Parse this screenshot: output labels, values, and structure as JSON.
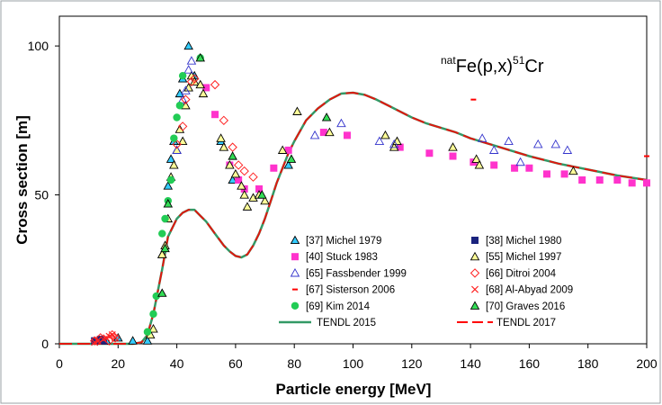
{
  "chart_data": {
    "type": "scatter",
    "title": "natFe(p,x)51Cr",
    "title_parts": {
      "pre_sup": "nat",
      "pre": "Fe(p,x)",
      "mid_sup": "51",
      "post": "Cr"
    },
    "xlabel": "Particle  energy [MeV]",
    "ylabel": "Cross section [m]",
    "xlim": [
      0,
      200
    ],
    "ylim": [
      0,
      110
    ],
    "xticks": [
      0,
      20,
      40,
      60,
      80,
      100,
      120,
      140,
      160,
      180,
      200
    ],
    "yticks": [
      0,
      50,
      100
    ],
    "legend_position": "lower-right",
    "series": [
      {
        "name": "[37] Michel 1979",
        "marker": "triangle",
        "fill": "#33ccff",
        "stroke": "#000000",
        "points": [
          [
            16,
            1
          ],
          [
            20,
            2
          ],
          [
            25,
            1
          ],
          [
            30,
            1
          ],
          [
            35,
            30
          ],
          [
            37,
            53
          ],
          [
            38,
            62
          ],
          [
            39,
            68
          ],
          [
            41,
            84
          ],
          [
            42,
            89
          ],
          [
            44,
            100
          ],
          [
            46,
            90
          ],
          [
            55,
            68
          ],
          [
            59,
            55
          ],
          [
            78,
            60
          ]
        ]
      },
      {
        "name": "[38] Michel 1980",
        "marker": "square",
        "fill": "#1a237e",
        "stroke": "#1a237e",
        "points": [
          [
            12,
            1
          ],
          [
            14,
            1.5
          ],
          [
            15,
            1
          ]
        ]
      },
      {
        "name": "[40] Stuck 1983",
        "marker": "square",
        "fill": "#ff33cc",
        "stroke": "#ff33cc",
        "points": [
          [
            50,
            86
          ],
          [
            53,
            77
          ],
          [
            58,
            60
          ],
          [
            61,
            55
          ],
          [
            63,
            52
          ],
          [
            68,
            52
          ],
          [
            73,
            59
          ],
          [
            78,
            65
          ],
          [
            90,
            71
          ],
          [
            98,
            70
          ],
          [
            116,
            66
          ],
          [
            126,
            64
          ],
          [
            134,
            63
          ],
          [
            141,
            61
          ],
          [
            148,
            60
          ],
          [
            155,
            59
          ],
          [
            160,
            59
          ],
          [
            166,
            57
          ],
          [
            172,
            57
          ],
          [
            178,
            55
          ],
          [
            184,
            55
          ],
          [
            190,
            55
          ],
          [
            195,
            54
          ],
          [
            200,
            54
          ]
        ]
      },
      {
        "name": "[55] Michel 1997",
        "marker": "triangle",
        "fill": "#ffff99",
        "stroke": "#000000",
        "points": [
          [
            31,
            3
          ],
          [
            32,
            5
          ],
          [
            35,
            30
          ],
          [
            36,
            33
          ],
          [
            37,
            42
          ],
          [
            38,
            56
          ],
          [
            39,
            60
          ],
          [
            40,
            65
          ],
          [
            41,
            72
          ],
          [
            42,
            68
          ],
          [
            43,
            80
          ],
          [
            44,
            86
          ],
          [
            45,
            90
          ],
          [
            46,
            88
          ],
          [
            48,
            87
          ],
          [
            49,
            84
          ],
          [
            55,
            69
          ],
          [
            56,
            66
          ],
          [
            58,
            60
          ],
          [
            60,
            57
          ],
          [
            62,
            53
          ],
          [
            63,
            50
          ],
          [
            64,
            46
          ],
          [
            66,
            49
          ],
          [
            68,
            50
          ],
          [
            70,
            48
          ],
          [
            76,
            65
          ],
          [
            81,
            78
          ],
          [
            92,
            71
          ],
          [
            111,
            70
          ],
          [
            114,
            66
          ],
          [
            115,
            68
          ],
          [
            134,
            66
          ],
          [
            142,
            62
          ],
          [
            143,
            60
          ],
          [
            175,
            58
          ]
        ]
      },
      {
        "name": "[65] Fassbender 1999",
        "marker": "triangle-open",
        "fill": "none",
        "stroke": "#3333cc",
        "points": [
          [
            40,
            65
          ],
          [
            42,
            82
          ],
          [
            43,
            85
          ],
          [
            44,
            92
          ],
          [
            45,
            95
          ],
          [
            87,
            70
          ],
          [
            96,
            74
          ],
          [
            109,
            68
          ],
          [
            114,
            67
          ],
          [
            144,
            69
          ],
          [
            148,
            65
          ],
          [
            153,
            68
          ],
          [
            157,
            61
          ],
          [
            163,
            67
          ],
          [
            169,
            67
          ],
          [
            173,
            65
          ]
        ]
      },
      {
        "name": "[66] Ditroi 2004",
        "marker": "diamond-open",
        "fill": "none",
        "stroke": "#ff2222",
        "points": [
          [
            12,
            1
          ],
          [
            14,
            2
          ],
          [
            17,
            1
          ],
          [
            18,
            3
          ],
          [
            19,
            2
          ],
          [
            40,
            67
          ],
          [
            42,
            73
          ],
          [
            43,
            82
          ],
          [
            45,
            88
          ],
          [
            46,
            89
          ],
          [
            53,
            87
          ],
          [
            56,
            75
          ],
          [
            59,
            66
          ],
          [
            61,
            60
          ],
          [
            63,
            58
          ],
          [
            66,
            56
          ]
        ]
      },
      {
        "name": "[67] Sisterson  2006",
        "marker": "dash",
        "fill": "#ff0000",
        "stroke": "#ff0000",
        "points": [
          [
            141,
            82
          ],
          [
            200,
            63
          ]
        ]
      },
      {
        "name": "[68] Al-Abyad 2009",
        "marker": "cross",
        "fill": "none",
        "stroke": "#ff2222",
        "points": [
          [
            12,
            0.5
          ],
          [
            13,
            1
          ],
          [
            15,
            1.5
          ],
          [
            16,
            2
          ],
          [
            17,
            2.5
          ],
          [
            18,
            3
          ],
          [
            19,
            2
          ]
        ]
      },
      {
        "name": "[69] Kim 2014",
        "marker": "circle",
        "fill": "#22cc55",
        "stroke": "#22cc55",
        "points": [
          [
            30,
            4
          ],
          [
            32,
            10
          ],
          [
            33,
            16
          ],
          [
            35,
            37
          ],
          [
            36,
            42
          ],
          [
            37,
            48
          ],
          [
            38,
            55
          ],
          [
            39,
            69
          ],
          [
            40,
            76
          ],
          [
            41,
            80
          ],
          [
            42,
            90
          ],
          [
            48,
            96
          ]
        ]
      },
      {
        "name": "[70] Graves 2016",
        "marker": "triangle",
        "fill": "#33dd55",
        "stroke": "#000000",
        "points": [
          [
            35,
            17
          ],
          [
            36,
            32
          ],
          [
            37,
            47
          ],
          [
            48,
            96
          ],
          [
            59,
            63
          ],
          [
            69,
            50
          ],
          [
            79,
            62
          ],
          [
            91,
            76
          ]
        ]
      },
      {
        "name": "TENDL 2015",
        "marker": "line",
        "stroke": "#339966",
        "width": 2.5,
        "points": [
          [
            0,
            0
          ],
          [
            25,
            0
          ],
          [
            28,
            0.5
          ],
          [
            30,
            3
          ],
          [
            32,
            10
          ],
          [
            35,
            25
          ],
          [
            37,
            36
          ],
          [
            40,
            42
          ],
          [
            42,
            44
          ],
          [
            44,
            45
          ],
          [
            46,
            45
          ],
          [
            48,
            43
          ],
          [
            50,
            41
          ],
          [
            53,
            37
          ],
          [
            56,
            33
          ],
          [
            58,
            31
          ],
          [
            60,
            29.5
          ],
          [
            62,
            29
          ],
          [
            64,
            30
          ],
          [
            66,
            33
          ],
          [
            68,
            37
          ],
          [
            70,
            42
          ],
          [
            72,
            48
          ],
          [
            74,
            54
          ],
          [
            76,
            59
          ],
          [
            78,
            64
          ],
          [
            80,
            68
          ],
          [
            84,
            75
          ],
          [
            88,
            79
          ],
          [
            92,
            82
          ],
          [
            96,
            84
          ],
          [
            100,
            84.3
          ],
          [
            104,
            83.6
          ],
          [
            108,
            82
          ],
          [
            112,
            80
          ],
          [
            116,
            78
          ],
          [
            120,
            76
          ],
          [
            125,
            74
          ],
          [
            130,
            72.5
          ],
          [
            135,
            71
          ],
          [
            140,
            69
          ],
          [
            150,
            66
          ],
          [
            160,
            63
          ],
          [
            170,
            60.5
          ],
          [
            180,
            58.5
          ],
          [
            190,
            56.5
          ],
          [
            200,
            55
          ]
        ]
      },
      {
        "name": "TENDL 2017",
        "marker": "dashline",
        "stroke": "#ff0000",
        "width": 2,
        "points": [
          [
            0,
            0
          ],
          [
            25,
            0
          ],
          [
            28,
            0.5
          ],
          [
            30,
            3
          ],
          [
            32,
            10
          ],
          [
            35,
            25
          ],
          [
            37,
            36
          ],
          [
            40,
            42
          ],
          [
            42,
            44
          ],
          [
            44,
            45
          ],
          [
            46,
            45
          ],
          [
            48,
            43
          ],
          [
            50,
            41
          ],
          [
            53,
            37
          ],
          [
            56,
            33
          ],
          [
            58,
            31
          ],
          [
            60,
            29.5
          ],
          [
            62,
            29
          ],
          [
            64,
            30
          ],
          [
            66,
            33
          ],
          [
            68,
            37
          ],
          [
            70,
            42
          ],
          [
            72,
            48
          ],
          [
            74,
            54
          ],
          [
            76,
            59
          ],
          [
            78,
            64
          ],
          [
            80,
            68
          ],
          [
            84,
            75
          ],
          [
            88,
            79
          ],
          [
            92,
            82
          ],
          [
            96,
            84
          ],
          [
            100,
            84.3
          ],
          [
            104,
            83.6
          ],
          [
            108,
            82
          ],
          [
            112,
            80
          ],
          [
            116,
            78
          ],
          [
            120,
            76
          ],
          [
            125,
            74
          ],
          [
            130,
            72.5
          ],
          [
            135,
            71
          ],
          [
            140,
            69
          ],
          [
            150,
            66
          ],
          [
            160,
            63
          ],
          [
            170,
            60.5
          ],
          [
            180,
            58.5
          ],
          [
            190,
            56.5
          ],
          [
            200,
            55
          ]
        ]
      }
    ]
  }
}
